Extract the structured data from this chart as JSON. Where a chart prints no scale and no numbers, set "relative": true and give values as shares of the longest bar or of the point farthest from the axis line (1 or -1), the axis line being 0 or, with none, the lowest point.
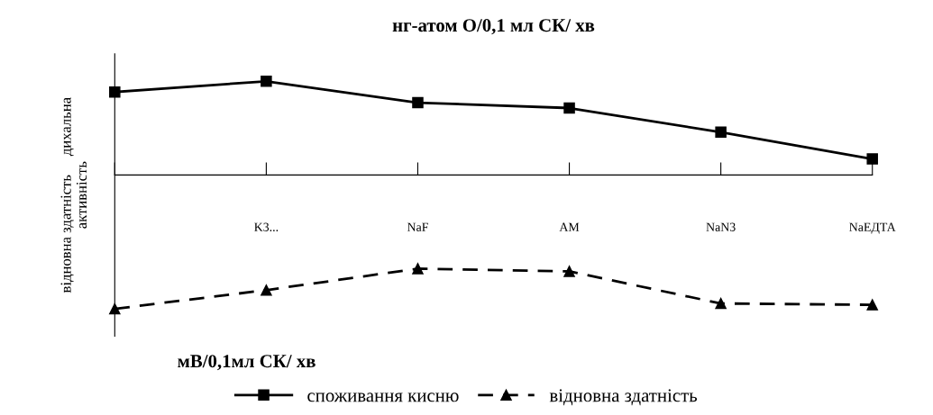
{
  "chart_data": {
    "type": "line",
    "title": "нг-атом O/0,1 мл СК/ хв",
    "ylabel": "відновна здатність     дихальна\nактивність",
    "annotations": [
      "мВ/0,1мл СК/ хв"
    ],
    "categories": [
      null,
      "K3...",
      "NaF",
      "AM",
      "NaN3",
      "NaЕДТА"
    ],
    "relative": true,
    "grid": false,
    "legend": "bottom",
    "series": [
      {
        "name": "споживання кисню",
        "color": "#000000",
        "marker": "square",
        "line_style": "solid",
        "values": [
          0.62,
          0.7,
          0.54,
          0.5,
          0.32,
          0.12
        ]
      },
      {
        "name": "відновна здатність",
        "color": "#000000",
        "marker": "triangle",
        "line_style": "dashed",
        "values": [
          -1,
          -0.86,
          -0.7,
          -0.72,
          -0.96,
          -0.97
        ]
      }
    ]
  }
}
